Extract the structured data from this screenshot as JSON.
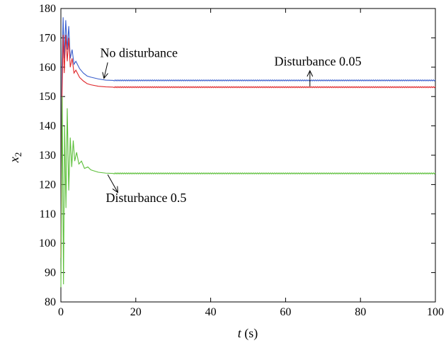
{
  "chart_data": {
    "type": "line",
    "xlabel_var": "t",
    "xlabel_unit": " (s)",
    "ylabel_var": "x",
    "ylabel_sub": "2",
    "xlim": [
      0,
      100
    ],
    "ylim": [
      80,
      180
    ],
    "xticks": [
      0,
      20,
      40,
      60,
      80,
      100
    ],
    "yticks": [
      80,
      90,
      100,
      110,
      120,
      130,
      140,
      150,
      160,
      170,
      180
    ],
    "grid": false,
    "series": [
      {
        "color": "#3a5fcd",
        "steady": 155.5,
        "points": [
          [
            0,
            100
          ],
          [
            0.3,
            160
          ],
          [
            0.6,
            177
          ],
          [
            0.9,
            163
          ],
          [
            1.3,
            176
          ],
          [
            1.7,
            166
          ],
          [
            2.1,
            174
          ],
          [
            2.5,
            163
          ],
          [
            3.0,
            166
          ],
          [
            3.5,
            161
          ],
          [
            4.0,
            162
          ],
          [
            5,
            159.5
          ],
          [
            6,
            158
          ],
          [
            7,
            157
          ],
          [
            8,
            156.6
          ],
          [
            10,
            156
          ],
          [
            12,
            155.6
          ],
          [
            14,
            155.5
          ],
          [
            100,
            155.5
          ]
        ]
      },
      {
        "color": "#e0282c",
        "steady": 153.2,
        "points": [
          [
            0,
            95
          ],
          [
            0.3,
            150
          ],
          [
            0.6,
            171
          ],
          [
            0.9,
            158
          ],
          [
            1.3,
            171
          ],
          [
            1.7,
            162
          ],
          [
            2.1,
            170
          ],
          [
            2.5,
            160
          ],
          [
            3.0,
            163
          ],
          [
            3.5,
            158
          ],
          [
            4.0,
            159
          ],
          [
            5,
            156.5
          ],
          [
            6,
            155.3
          ],
          [
            7,
            154.4
          ],
          [
            8,
            154
          ],
          [
            10,
            153.5
          ],
          [
            12,
            153.3
          ],
          [
            14,
            153.2
          ],
          [
            100,
            153.2
          ]
        ]
      },
      {
        "color": "#5cbf3a",
        "steady": 123.8,
        "points": [
          [
            0,
            85
          ],
          [
            0.35,
            150
          ],
          [
            0.7,
            86
          ],
          [
            1.0,
            140
          ],
          [
            1.35,
            112
          ],
          [
            1.7,
            146
          ],
          [
            2.1,
            118
          ],
          [
            2.5,
            136
          ],
          [
            2.9,
            126
          ],
          [
            3.3,
            135
          ],
          [
            3.7,
            128
          ],
          [
            4.2,
            131
          ],
          [
            4.8,
            127
          ],
          [
            5.5,
            128
          ],
          [
            6.3,
            125.5
          ],
          [
            7.2,
            126
          ],
          [
            8,
            125
          ],
          [
            9,
            124.6
          ],
          [
            10,
            124.2
          ],
          [
            12,
            123.9
          ],
          [
            14,
            123.8
          ],
          [
            100,
            123.8
          ]
        ]
      }
    ],
    "annotations": [
      {
        "text": "No disturbance",
        "x": 10.5,
        "y": 163.5,
        "arrow_from": [
          12.5,
          161.6
        ],
        "arrow_to": [
          11.5,
          156.2
        ]
      },
      {
        "text": "Disturbance 0.05",
        "x": 57,
        "y": 160.5,
        "arrow_from": [
          66.5,
          153.4
        ],
        "arrow_to": [
          66.5,
          158.8
        ]
      },
      {
        "text": "Disturbance 0.5",
        "x": 12,
        "y": 114,
        "arrow_from": [
          12.5,
          123.4
        ],
        "arrow_to": [
          15.2,
          117.3
        ]
      }
    ]
  }
}
